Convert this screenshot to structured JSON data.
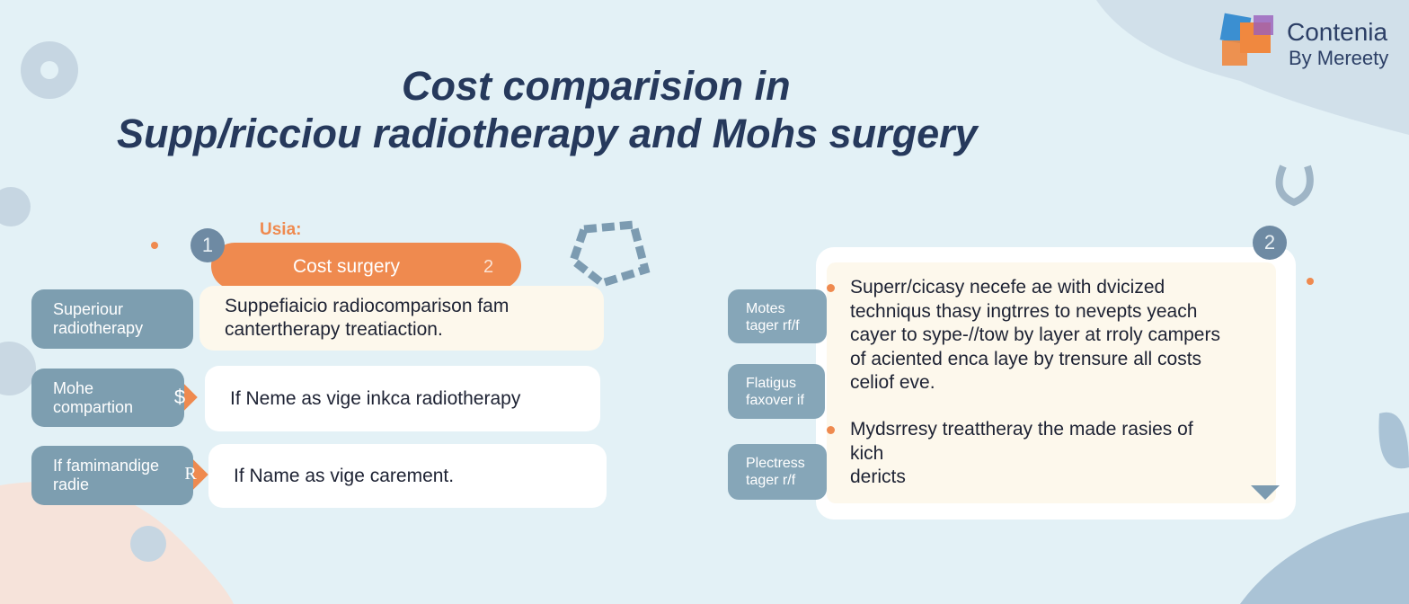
{
  "header": {
    "title_lines": [
      "Cost comparision in",
      "Supp/ricciou radiotherapy and Mohs surgery"
    ]
  },
  "logo": {
    "name": "Contenia",
    "byline": "By Mereety"
  },
  "left_panel": {
    "step": "1",
    "kicker": "Usia:",
    "heading": "Cost surgery",
    "heading_index": "2",
    "rows": [
      {
        "label_lines": [
          "Superiour",
          "radiotherapy"
        ],
        "text_lines": [
          "Suppefiaicio radiocomparison fam",
          "cantertherapy treatiaction."
        ]
      },
      {
        "label_lines": [
          "Mohe",
          "compartion"
        ],
        "icon": "$",
        "text_lines": [
          "If Neme as vige inkca radiotherapy"
        ]
      },
      {
        "label_lines": [
          "If famimandige",
          "radie"
        ],
        "icon": "R",
        "text_lines": [
          "If Name as vige carement."
        ]
      }
    ]
  },
  "right_panel": {
    "step": "2",
    "labels": [
      [
        "Motes",
        "tager rf/f"
      ],
      [
        "Flatigus",
        "faxover if"
      ],
      [
        "Plectress",
        "tager r/f"
      ]
    ],
    "bullets": [
      [
        "Superr/cicasy necefe ae with dvicized",
        "techniqus thasy ingtrres to nevepts yeach",
        "cayer to sype-//tow by layer at rroly campers",
        "of aciented enca laye by trensure all costs",
        "celiof eve."
      ],
      [
        "Mydsrresy treattheray the made rasies of",
        "kich",
        "dericts"
      ]
    ]
  }
}
